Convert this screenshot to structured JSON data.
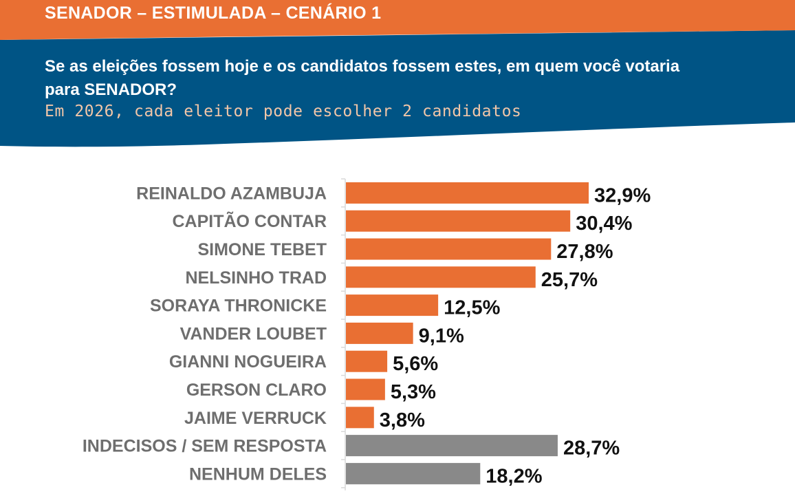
{
  "header": {
    "title": "SENADOR – ESTIMULADA – CENÁRIO 1",
    "question": "Se as eleições fossem hoje e os candidatos fossem estes, em quem você votaria para SENADOR?",
    "subtitle": "Em 2026, cada eleitor pode escolher 2 candidatos"
  },
  "colors": {
    "header_orange": "#e96f33",
    "header_blue": "#005485",
    "subtitle": "#f2c6a8",
    "bar_candidate": "#e96f33",
    "bar_other": "#898989",
    "category_text": "#6e6e6e",
    "value_text": "#111111",
    "axis": "#d9d9d9"
  },
  "chart_data": {
    "type": "bar",
    "orientation": "horizontal",
    "title": "SENADOR – ESTIMULADA – CENÁRIO 1",
    "xlabel": "",
    "ylabel": "",
    "xlim": [
      0,
      35
    ],
    "unit": "%",
    "grid": false,
    "legend": "none",
    "categories": [
      "REINALDO AZAMBUJA",
      "CAPITÃO CONTAR",
      "SIMONE TEBET",
      "NELSINHO TRAD",
      "SORAYA THRONICKE",
      "VANDER LOUBET",
      "GIANNI NOGUEIRA",
      "GERSON CLARO",
      "JAIME VERRUCK",
      "INDECISOS / SEM RESPOSTA",
      "NENHUM DELES"
    ],
    "values": [
      32.9,
      30.4,
      27.8,
      25.7,
      12.5,
      9.1,
      5.6,
      5.3,
      3.8,
      28.7,
      18.2
    ],
    "value_labels": [
      "32,9%",
      "30,4%",
      "27,8%",
      "25,7%",
      "12,5%",
      "9,1%",
      "5,6%",
      "5,3%",
      "3,8%",
      "28,7%",
      "18,2%"
    ],
    "groups": [
      "candidate",
      "candidate",
      "candidate",
      "candidate",
      "candidate",
      "candidate",
      "candidate",
      "candidate",
      "candidate",
      "other",
      "other"
    ]
  }
}
